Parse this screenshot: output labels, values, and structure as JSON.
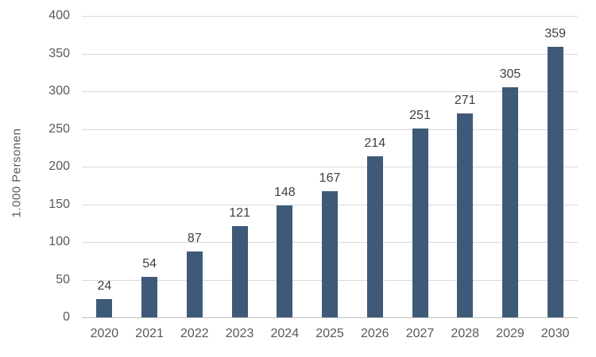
{
  "chart_data": {
    "type": "bar",
    "title": "",
    "xlabel": "",
    "ylabel": "1.000 Personen",
    "categories": [
      "2020",
      "2021",
      "2022",
      "2023",
      "2024",
      "2025",
      "2026",
      "2027",
      "2028",
      "2029",
      "2030"
    ],
    "values": [
      24,
      54,
      87,
      121,
      148,
      167,
      214,
      251,
      271,
      305,
      359
    ],
    "ylim": [
      0,
      400
    ],
    "ytick_step": 50,
    "grid": true,
    "legend": "none",
    "colors": {
      "bar": "#3e5a78",
      "value_label": "#404040",
      "axis_text": "#595959",
      "gridline": "#d9d9d9",
      "baseline": "#c0c0c0",
      "background": "#ffffff"
    }
  }
}
